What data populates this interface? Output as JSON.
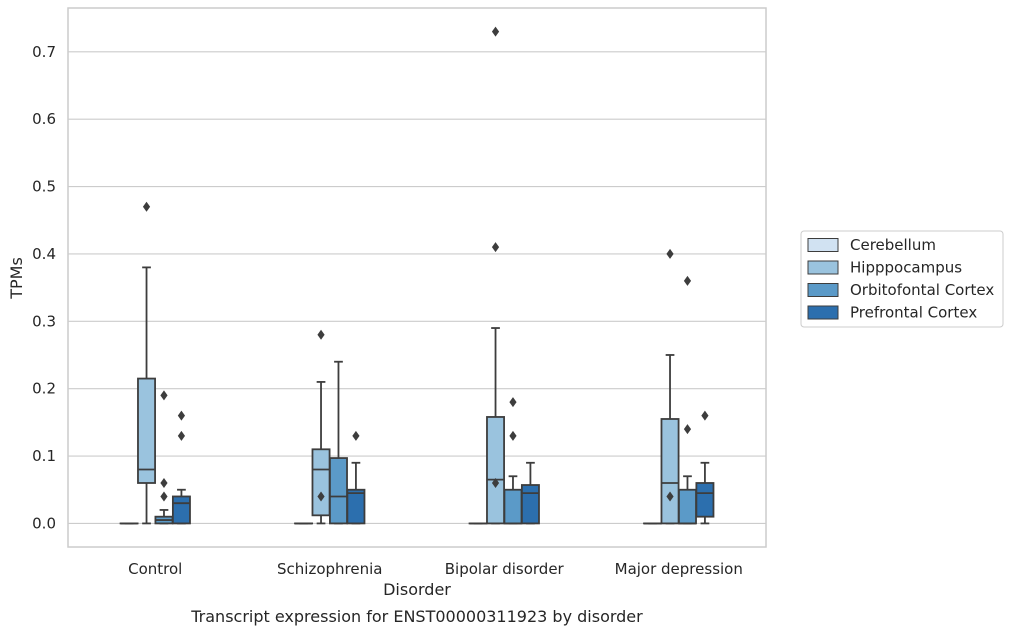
{
  "chart_data": {
    "type": "box",
    "title": "",
    "caption": "Transcript expression for ENST00000311923 by disorder",
    "xlabel": "Disorder",
    "ylabel": "TPMs",
    "ylim": [
      -0.035,
      0.765
    ],
    "yticks": [
      "0.0",
      "0.1",
      "0.2",
      "0.3",
      "0.4",
      "0.5",
      "0.6",
      "0.7"
    ],
    "grid": "horizontal",
    "legend_position": "right",
    "categories": [
      "Control",
      "Schizophrenia",
      "Bipolar disorder",
      "Major depression"
    ],
    "series": [
      {
        "name": "Cerebellum",
        "color": "#d1e2f2",
        "boxes": [
          {
            "min": 0.0,
            "q1": 0.0,
            "median": 0.0,
            "q3": 0.0,
            "max": 0.0,
            "outliers": []
          },
          {
            "min": 0.0,
            "q1": 0.0,
            "median": 0.0,
            "q3": 0.0,
            "max": 0.0,
            "outliers": []
          },
          {
            "min": 0.0,
            "q1": 0.0,
            "median": 0.0,
            "q3": 0.0,
            "max": 0.0,
            "outliers": []
          },
          {
            "min": 0.0,
            "q1": 0.0,
            "median": 0.0,
            "q3": 0.0,
            "max": 0.0,
            "outliers": []
          }
        ]
      },
      {
        "name": "Hipppocampus",
        "color": "#9ac3de",
        "boxes": [
          {
            "min": 0.0,
            "q1": 0.06,
            "median": 0.08,
            "q3": 0.215,
            "max": 0.38,
            "outliers": [
              0.47
            ]
          },
          {
            "min": 0.0,
            "q1": 0.012,
            "median": 0.08,
            "q3": 0.11,
            "max": 0.21,
            "outliers": [
              0.04,
              0.28
            ]
          },
          {
            "min": 0.0,
            "q1": 0.0,
            "median": 0.065,
            "q3": 0.158,
            "max": 0.29,
            "outliers": [
              0.06,
              0.41,
              0.73
            ]
          },
          {
            "min": 0.0,
            "q1": 0.0,
            "median": 0.06,
            "q3": 0.155,
            "max": 0.25,
            "outliers": [
              0.04,
              0.4
            ]
          }
        ]
      },
      {
        "name": "Orbitofontal Cortex",
        "color": "#5b9ac8",
        "boxes": [
          {
            "min": 0.0,
            "q1": 0.0,
            "median": 0.005,
            "q3": 0.01,
            "max": 0.02,
            "outliers": [
              0.04,
              0.06,
              0.19
            ]
          },
          {
            "min": 0.0,
            "q1": 0.0,
            "median": 0.04,
            "q3": 0.097,
            "max": 0.24,
            "outliers": []
          },
          {
            "min": 0.0,
            "q1": 0.0,
            "median": 0.0,
            "q3": 0.05,
            "max": 0.07,
            "outliers": [
              0.13,
              0.18
            ]
          },
          {
            "min": 0.0,
            "q1": 0.0,
            "median": 0.0,
            "q3": 0.05,
            "max": 0.07,
            "outliers": [
              0.14,
              0.36
            ]
          }
        ]
      },
      {
        "name": "Prefrontal Cortex",
        "color": "#2c6fae",
        "boxes": [
          {
            "min": 0.0,
            "q1": 0.0,
            "median": 0.03,
            "q3": 0.04,
            "max": 0.05,
            "outliers": [
              0.13,
              0.16
            ]
          },
          {
            "min": 0.0,
            "q1": 0.0,
            "median": 0.045,
            "q3": 0.05,
            "max": 0.09,
            "outliers": [
              0.13
            ]
          },
          {
            "min": 0.0,
            "q1": 0.0,
            "median": 0.045,
            "q3": 0.057,
            "max": 0.09,
            "outliers": []
          },
          {
            "min": 0.0,
            "q1": 0.01,
            "median": 0.045,
            "q3": 0.06,
            "max": 0.09,
            "outliers": [
              0.16
            ]
          }
        ]
      }
    ]
  },
  "colors": {
    "edge": "#3d3d3d",
    "grid": "#cccccc",
    "frame": "#cccccc",
    "text": "#262626",
    "background": "#ffffff"
  }
}
